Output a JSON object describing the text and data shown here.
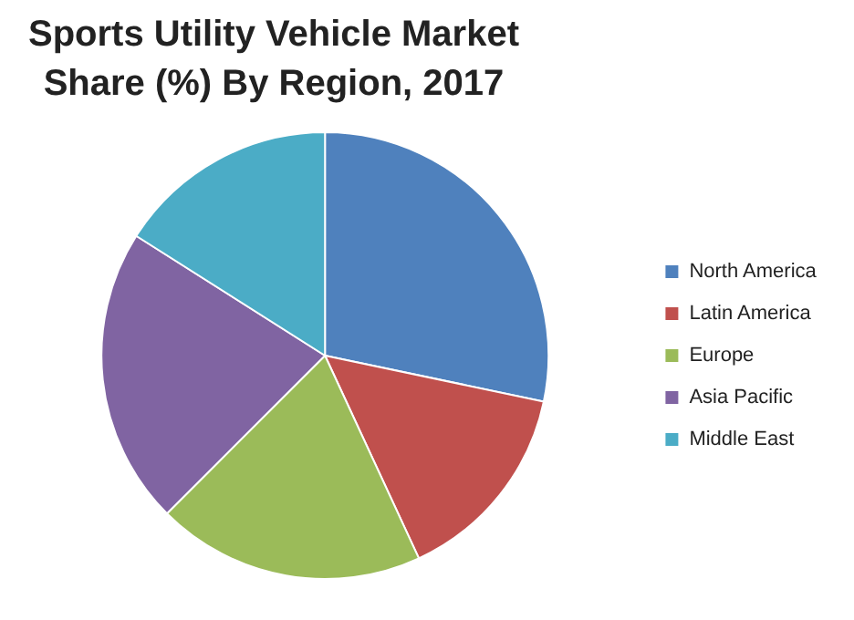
{
  "chart_data": {
    "type": "pie",
    "title": "Sports Utility Vehicle Market Share (%) By Region, 2017",
    "categories": [
      "North America",
      "Latin America",
      "Europe",
      "Asia Pacific",
      "Middle East"
    ],
    "values": [
      28.3,
      14.8,
      19.4,
      21.5,
      16.0
    ],
    "colors": [
      "#4f81bd",
      "#c0504d",
      "#9bbb59",
      "#8064a2",
      "#4bacc6"
    ],
    "legend": "right"
  }
}
